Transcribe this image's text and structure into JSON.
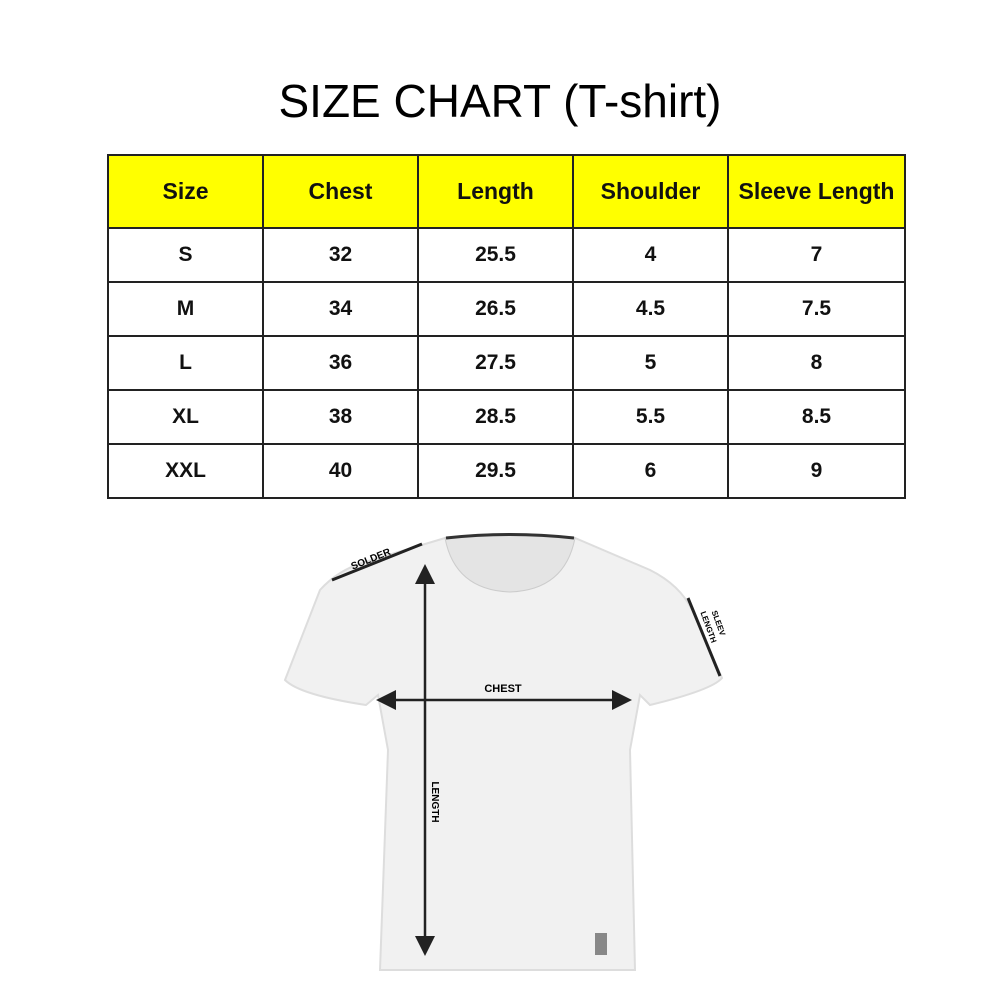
{
  "title": "SIZE CHART (T-shirt)",
  "table": {
    "headers": [
      "Size",
      "Chest",
      "Length",
      "Shoulder",
      "Sleeve Length"
    ],
    "rows": [
      [
        "S",
        "32",
        "25.5",
        "4",
        "7"
      ],
      [
        "M",
        "34",
        "26.5",
        "4.5",
        "7.5"
      ],
      [
        "L",
        "36",
        "27.5",
        "5",
        "8"
      ],
      [
        "XL",
        "38",
        "28.5",
        "5.5",
        "8.5"
      ],
      [
        "XXL",
        "40",
        "29.5",
        "6",
        "9"
      ]
    ],
    "header_color": "#ffff00"
  },
  "diagram": {
    "labels": {
      "shoulder": "SOLDER",
      "sleeve_1": "SLEEV",
      "sleeve_2": "LENGTH",
      "chest": "CHEST",
      "length": "LENGTH"
    }
  }
}
